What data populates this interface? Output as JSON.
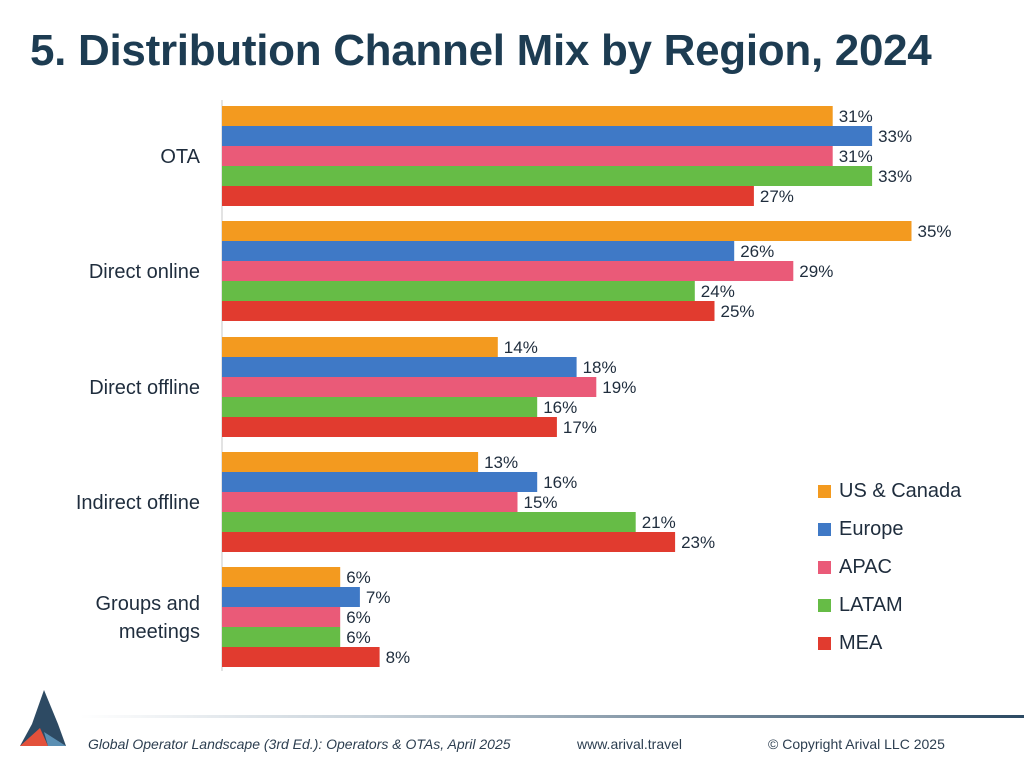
{
  "title": "5. Distribution Channel Mix by Region, 2024",
  "footer": {
    "source": "Global Operator Landscape (3rd Ed.): Operators & OTAs, April 2025",
    "website": "www.arival.travel",
    "copyright": "© Copyright Arival LLC 2025"
  },
  "colors": {
    "us_canada": "#f39a1f",
    "europe": "#3f79c6",
    "apac": "#ea5a78",
    "latam": "#66bc46",
    "mea": "#e13b2f",
    "title": "#1d3c52"
  },
  "chart_data": {
    "type": "bar",
    "orientation": "horizontal",
    "title": "5. Distribution Channel Mix by Region, 2024",
    "xlabel": "",
    "ylabel": "",
    "categories": [
      [
        "OTA"
      ],
      [
        "Direct online"
      ],
      [
        "Direct offline"
      ],
      [
        "Indirect offline"
      ],
      [
        "Groups and",
        "meetings"
      ]
    ],
    "category_names": [
      "OTA",
      "Direct online",
      "Direct offline",
      "Indirect offline",
      "Groups and meetings"
    ],
    "series": [
      {
        "name": "US & Canada",
        "color": "#f39a1f",
        "values": [
          31,
          35,
          14,
          13,
          6
        ]
      },
      {
        "name": "Europe",
        "color": "#3f79c6",
        "values": [
          33,
          26,
          18,
          16,
          7
        ]
      },
      {
        "name": "APAC",
        "color": "#ea5a78",
        "values": [
          31,
          29,
          19,
          15,
          6
        ]
      },
      {
        "name": "LATAM",
        "color": "#66bc46",
        "values": [
          33,
          24,
          16,
          21,
          6
        ]
      },
      {
        "name": "MEA",
        "color": "#e13b2f",
        "values": [
          27,
          25,
          17,
          23,
          8
        ]
      }
    ],
    "value_suffix": "%",
    "xlim": [
      0,
      35
    ],
    "grid": false,
    "legend_position": "bottom-right"
  }
}
